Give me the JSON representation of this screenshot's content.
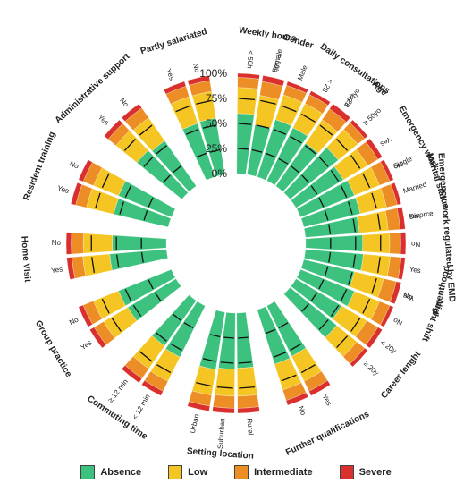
{
  "chart_data": {
    "type": "radial-stacked-bar",
    "title": "",
    "tick_labels": [
      "0%",
      "25%",
      "50%",
      "75%",
      "100%"
    ],
    "ylim": [
      0,
      100
    ],
    "series_names": [
      "Absence",
      "Low",
      "Intermediate",
      "Severe"
    ],
    "colors": [
      "#3cc27e",
      "#f5c623",
      "#ec8e25",
      "#d9302d"
    ],
    "groups": [
      {
        "name": "Gender",
        "bars": [
          {
            "label": "Female",
            "values": [
              55,
              28,
              12,
              5
            ]
          },
          {
            "label": "Male",
            "values": [
              60,
              26,
              10,
              4
            ]
          }
        ]
      },
      {
        "name": "Age",
        "bars": [
          {
            "label": "< 50yo",
            "values": [
              52,
              30,
              13,
              5
            ]
          },
          {
            "label": "≥ 50yo",
            "values": [
              62,
              25,
              9,
              4
            ]
          }
        ]
      },
      {
        "name": "Marital status",
        "bars": [
          {
            "label": "Single",
            "values": [
              50,
              28,
              15,
              7
            ]
          },
          {
            "label": "Married",
            "values": [
              58,
              27,
              11,
              4
            ]
          },
          {
            "label": "Divorce",
            "values": [
              48,
              30,
              15,
              7
            ]
          }
        ]
      },
      {
        "name": "Parenthood",
        "bars": [
          {
            "label": "Yes",
            "values": [
              58,
              27,
              11,
              4
            ]
          },
          {
            "label": "No",
            "values": [
              52,
              29,
              13,
              6
            ]
          }
        ]
      },
      {
        "name": "Career lenght",
        "bars": [
          {
            "label": "< 20y",
            "values": [
              53,
              29,
              13,
              5
            ]
          },
          {
            "label": "≥ 20y",
            "values": [
              60,
              26,
              10,
              4
            ]
          }
        ]
      },
      {
        "name": "Further qualifications",
        "bars": [
          {
            "label": "Yes",
            "values": [
              56,
              28,
              11,
              5
            ]
          },
          {
            "label": "No",
            "values": [
              57,
              27,
              11,
              5
            ]
          }
        ]
      },
      {
        "name": "Setting location",
        "bars": [
          {
            "label": "Rural",
            "values": [
              55,
              28,
              12,
              5
            ]
          },
          {
            "label": "Suburban",
            "values": [
              56,
              27,
              12,
              5
            ]
          },
          {
            "label": "Urban",
            "values": [
              58,
              26,
              11,
              5
            ]
          }
        ]
      },
      {
        "name": "Commuting time",
        "bars": [
          {
            "label": "< 12 min",
            "values": [
              57,
              27,
              11,
              5
            ]
          },
          {
            "label": "≥ 12 min",
            "values": [
              55,
              28,
              12,
              5
            ]
          }
        ]
      },
      {
        "name": "Group practice",
        "bars": [
          {
            "label": "Yes",
            "values": [
              56,
              28,
              11,
              5
            ]
          },
          {
            "label": "No",
            "values": [
              57,
              27,
              11,
              5
            ]
          }
        ]
      },
      {
        "name": "Home Visit",
        "bars": [
          {
            "label": "Yes",
            "values": [
              57,
              27,
              11,
              5
            ]
          },
          {
            "label": "No",
            "values": [
              54,
              29,
              12,
              5
            ]
          }
        ]
      },
      {
        "name": "Resident training",
        "bars": [
          {
            "label": "Yes",
            "values": [
              56,
              28,
              11,
              5
            ]
          },
          {
            "label": "No",
            "values": [
              57,
              27,
              11,
              5
            ]
          }
        ]
      },
      {
        "name": "Administrative support",
        "bars": [
          {
            "label": "Yes",
            "values": [
              58,
              27,
              10,
              5
            ]
          },
          {
            "label": "No",
            "values": [
              55,
              28,
              12,
              5
            ]
          }
        ]
      },
      {
        "name": "Partly salariated",
        "bars": [
          {
            "label": "Yes",
            "values": [
              56,
              28,
              11,
              5
            ]
          },
          {
            "label": "No",
            "values": [
              57,
              27,
              11,
              5
            ]
          }
        ]
      },
      {
        "name": "Weekly hours",
        "bars": [
          {
            "label": "< 50h",
            "values": [
              60,
              26,
              10,
              4
            ]
          },
          {
            "label": "≥ 50h",
            "values": [
              50,
              30,
              14,
              6
            ]
          }
        ]
      },
      {
        "name": "Daily consultations",
        "bars": [
          {
            "label": "< 28",
            "values": [
              59,
              27,
              10,
              4
            ]
          },
          {
            "label": "≥ 28",
            "values": [
              52,
              29,
              13,
              6
            ]
          }
        ]
      },
      {
        "name": "Emergency work",
        "bars": [
          {
            "label": "Yes",
            "values": [
              55,
              28,
              12,
              5
            ]
          },
          {
            "label": "No",
            "values": [
              58,
              27,
              11,
              4
            ]
          }
        ]
      },
      {
        "name": "Emergency work regulated by EMD",
        "bars": [
          {
            "label": "Yes",
            "values": [
              54,
              29,
              12,
              5
            ]
          },
          {
            "label": "No",
            "values": [
              57,
              27,
              11,
              5
            ]
          }
        ]
      },
      {
        "name": "Night shift",
        "bars": [
          {
            "label": "Yes",
            "values": [
              52,
              30,
              13,
              5
            ]
          },
          {
            "label": "No",
            "values": [
              58,
              27,
              11,
              4
            ]
          }
        ]
      }
    ]
  },
  "legend": {
    "items": [
      {
        "label": "Absence",
        "color": "#3cc27e"
      },
      {
        "label": "Low",
        "color": "#f5c623"
      },
      {
        "label": "Intermediate",
        "color": "#ec8e25"
      },
      {
        "label": "Severe",
        "color": "#d9302d"
      }
    ]
  }
}
